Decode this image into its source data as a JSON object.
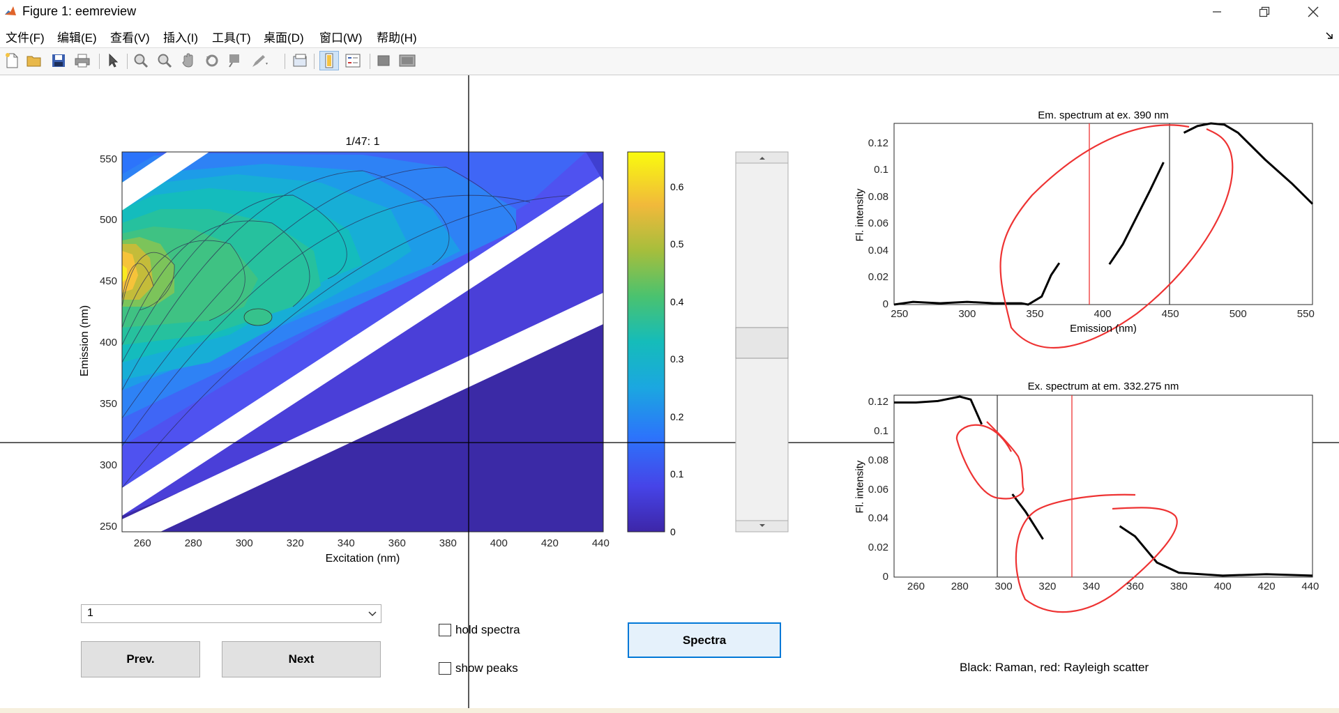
{
  "window": {
    "title": "Figure 1: eemreview"
  },
  "menu": [
    "文件(F)",
    "编辑(E)",
    "查看(V)",
    "插入(I)",
    "工具(T)",
    "桌面(D)",
    "窗口(W)",
    "帮助(H)"
  ],
  "toolbar_icons": [
    "new-figure-icon",
    "open-file-icon",
    "save-icon",
    "print-icon",
    "pointer-icon",
    "zoom-in-icon",
    "zoom-out-icon",
    "pan-icon",
    "rotate-icon",
    "data-cursor-icon",
    "brush-icon",
    "link-plot-icon",
    "colorbar-icon",
    "legend-icon",
    "hide-plot-tools-icon",
    "show-plot-tools-icon"
  ],
  "main_plot": {
    "title": "1/47:  1",
    "xlabel": "Excitation (nm)",
    "ylabel": "Emission (nm)",
    "xticks": [
      "260",
      "280",
      "300",
      "320",
      "340",
      "360",
      "380",
      "400",
      "420",
      "440"
    ],
    "yticks": [
      "250",
      "300",
      "350",
      "400",
      "450",
      "500",
      "550"
    ]
  },
  "colorbar": {
    "ticks": [
      "0",
      "0.1",
      "0.2",
      "0.3",
      "0.4",
      "0.5",
      "0.6"
    ]
  },
  "em_plot": {
    "title": "Em. spectrum at ex. 390 nm",
    "xlabel": "Emission (nm)",
    "ylabel": "Fl. intensity",
    "xticks": [
      "250",
      "300",
      "350",
      "400",
      "450",
      "500",
      "550"
    ],
    "yticks": [
      "0",
      "0.02",
      "0.04",
      "0.06",
      "0.08",
      "0.1",
      "0.12"
    ]
  },
  "ex_plot": {
    "title": "Ex. spectrum at em. 332.275 nm",
    "xlabel": "",
    "ylabel": "Fl. intensity",
    "xticks": [
      "260",
      "280",
      "300",
      "320",
      "340",
      "360",
      "380",
      "400",
      "420",
      "440"
    ],
    "yticks": [
      "0",
      "0.02",
      "0.04",
      "0.06",
      "0.08",
      "0.1",
      "0.12"
    ]
  },
  "controls": {
    "dropdown_value": "1",
    "prev_label": "Prev.",
    "next_label": "Next",
    "hold_spectra_label": "hold spectra",
    "show_peaks_label": "show peaks",
    "spectra_label": "Spectra"
  },
  "legend_note": "Black: Raman, red: Rayleigh scatter",
  "chart_data": [
    {
      "type": "heatmap",
      "title": "1/47:  1",
      "xlabel": "Excitation (nm)",
      "ylabel": "Emission (nm)",
      "xlim": [
        252,
        441
      ],
      "ylim": [
        246,
        556
      ],
      "colorbar_range": [
        0,
        0.66
      ],
      "peak": {
        "x": 305,
        "y": 420,
        "value": 0.38
      },
      "max_region": {
        "x": 252,
        "y": 450,
        "value": 0.65
      }
    },
    {
      "type": "line",
      "title": "Em. spectrum at ex. 390 nm",
      "xlabel": "Emission (nm)",
      "ylabel": "Fl. intensity",
      "xlim": [
        246,
        555
      ],
      "ylim": [
        0,
        0.135
      ],
      "series": [
        {
          "x": [
            246,
            260,
            280,
            300,
            320,
            340,
            345,
            355,
            362,
            368
          ],
          "y": [
            0,
            0.002,
            0.001,
            0.002,
            0.001,
            0.001,
            0.0,
            0.006,
            0.022,
            0.031
          ]
        },
        {
          "x": [
            405,
            415,
            425,
            435,
            445
          ],
          "y": [
            0.03,
            0.045,
            0.065,
            0.085,
            0.106
          ]
        },
        {
          "x": [
            460,
            470,
            480,
            490,
            500,
            520,
            540,
            555
          ],
          "y": [
            0.128,
            0.133,
            0.135,
            0.134,
            0.128,
            0.108,
            0.09,
            0.075
          ]
        }
      ],
      "vlines": [
        {
          "x": 390,
          "color": "red"
        },
        {
          "x": 450,
          "color": "black"
        }
      ]
    },
    {
      "type": "line",
      "title": "Ex. spectrum at em. 332.275 nm",
      "xlabel": "",
      "ylabel": "Fl. intensity",
      "xlim": [
        250,
        441
      ],
      "ylim": [
        0,
        0.125
      ],
      "series": [
        {
          "x": [
            250,
            260,
            270,
            280,
            285,
            290
          ],
          "y": [
            0.12,
            0.12,
            0.121,
            0.124,
            0.122,
            0.105
          ]
        },
        {
          "x": [
            304,
            310,
            318
          ],
          "y": [
            0.057,
            0.045,
            0.026
          ]
        },
        {
          "x": [
            353,
            360,
            370,
            380,
            400,
            420,
            441
          ],
          "y": [
            0.035,
            0.028,
            0.01,
            0.003,
            0.001,
            0.002,
            0.001
          ]
        }
      ],
      "vlines": [
        {
          "x": 298,
          "color": "black"
        },
        {
          "x": 332,
          "color": "red"
        }
      ]
    }
  ]
}
